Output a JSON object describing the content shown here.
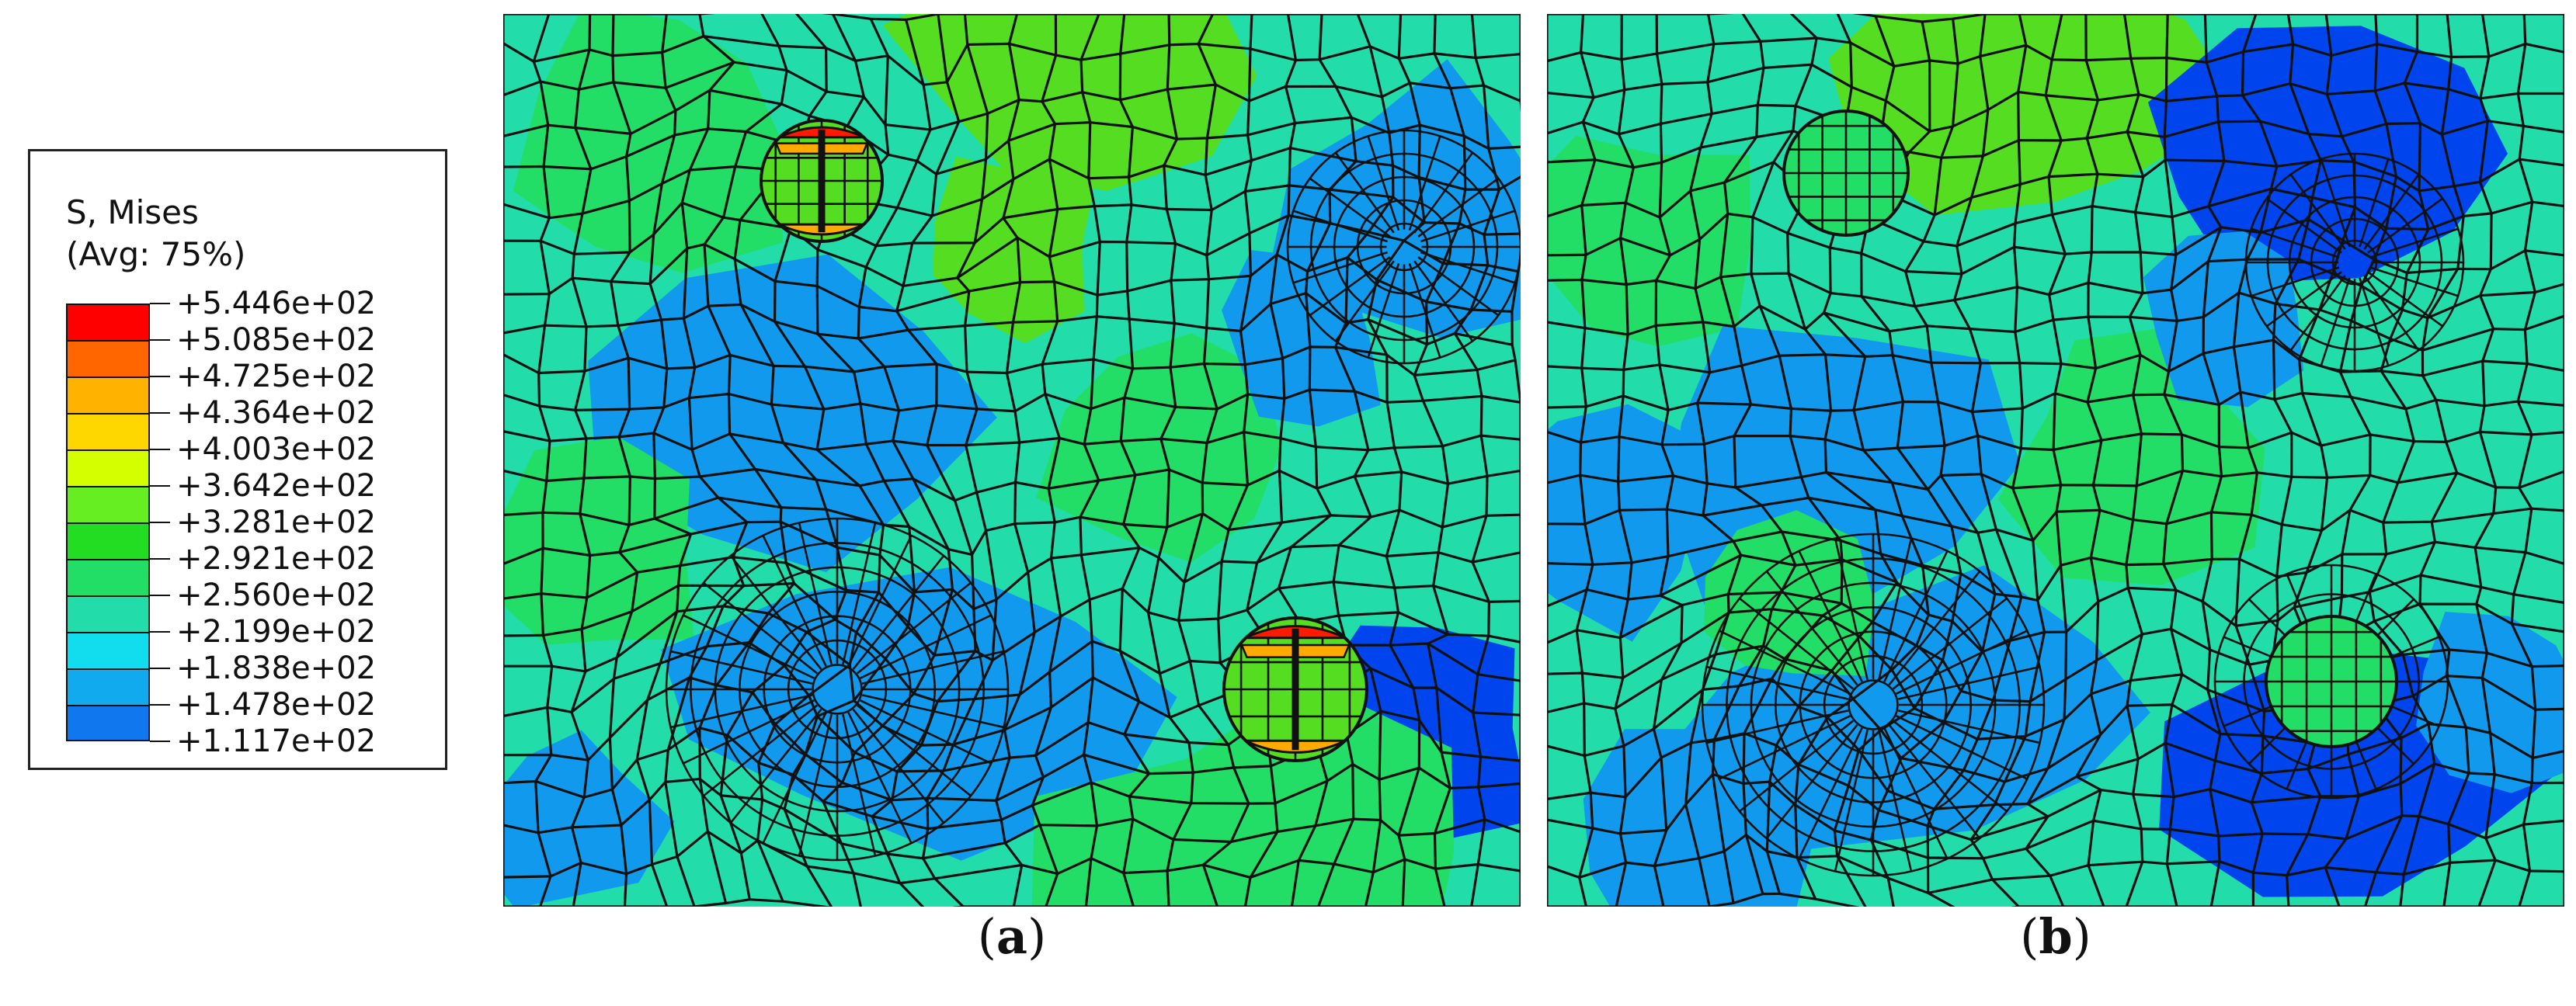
{
  "legend": {
    "title_line1": "S, Mises",
    "title_line2": "(Avg: 75%)",
    "levels": [
      {
        "label": "+5.446e+02",
        "color": "#ff0000"
      },
      {
        "label": "+5.085e+02",
        "color": "#ff6600"
      },
      {
        "label": "+4.725e+02",
        "color": "#ffb300"
      },
      {
        "label": "+4.364e+02",
        "color": "#ffd700"
      },
      {
        "label": "+4.003e+02",
        "color": "#d4ff00"
      },
      {
        "label": "+3.642e+02",
        "color": "#66ee22"
      },
      {
        "label": "+3.281e+02",
        "color": "#22dd22"
      },
      {
        "label": "+2.921e+02",
        "color": "#22dd66"
      },
      {
        "label": "+2.560e+02",
        "color": "#22ddaa"
      },
      {
        "label": "+2.199e+02",
        "color": "#11ddee"
      },
      {
        "label": "+1.838e+02",
        "color": "#11aaee"
      },
      {
        "label": "+1.478e+02",
        "color": "#1177ee"
      },
      {
        "label": "+1.117e+02",
        "color": "#0000ff"
      }
    ]
  },
  "panels": [
    {
      "id": "a",
      "caption_open": "(",
      "caption_letter": "a",
      "caption_close": ")"
    },
    {
      "id": "b",
      "caption_open": "(",
      "caption_letter": "b",
      "caption_close": ")"
    }
  ],
  "colors": {
    "mesh_line": "#111111",
    "base": "#22ddaa",
    "low": "#1199ee",
    "lowest": "#0044ee",
    "mid": "#22dd66",
    "high": "#55dd22",
    "hot_red": "#ff1a00",
    "hot_orange": "#ffaa00"
  }
}
